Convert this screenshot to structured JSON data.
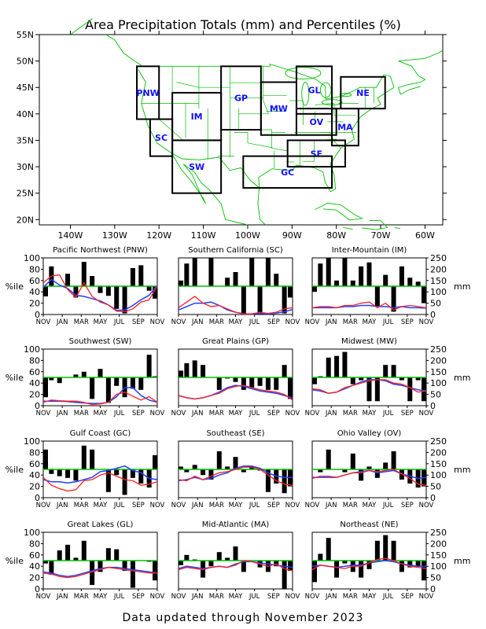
{
  "header": {
    "title": "Area Precipitation Totals (mm) and Percentiles (%)"
  },
  "footer": {
    "text": "Data updated through November 2023"
  },
  "map": {
    "lat_ticks": [
      "55N",
      "50N",
      "45N",
      "40N",
      "35N",
      "30N",
      "25N",
      "20N"
    ],
    "lon_ticks": [
      "140W",
      "130W",
      "120W",
      "110W",
      "100W",
      "90W",
      "80W",
      "70W",
      "60W"
    ],
    "regions": [
      {
        "code": "PNW",
        "lon": [
          -125,
          -120
        ],
        "lat": [
          39,
          49
        ]
      },
      {
        "code": "SC",
        "lon": [
          -122,
          -117
        ],
        "lat": [
          32,
          39
        ]
      },
      {
        "code": "IM",
        "lon": [
          -117,
          -106
        ],
        "lat": [
          35,
          44
        ]
      },
      {
        "code": "SW",
        "lon": [
          -117,
          -106
        ],
        "lat": [
          25,
          35
        ]
      },
      {
        "code": "GP",
        "lon": [
          -106,
          -97
        ],
        "lat": [
          37,
          49
        ]
      },
      {
        "code": "MW",
        "lon": [
          -97,
          -89
        ],
        "lat": [
          36,
          46
        ]
      },
      {
        "code": "GL",
        "lon": [
          -89,
          -81
        ],
        "lat": [
          40,
          49
        ]
      },
      {
        "code": "OV",
        "lon": [
          -89,
          -80
        ],
        "lat": [
          36,
          41
        ]
      },
      {
        "code": "NE",
        "lon": [
          -79,
          -69
        ],
        "lat": [
          41,
          47
        ]
      },
      {
        "code": "MA",
        "lon": [
          -81,
          -75
        ],
        "lat": [
          34,
          41
        ]
      },
      {
        "code": "SE",
        "lon": [
          -91,
          -78
        ],
        "lat": [
          30,
          35
        ]
      },
      {
        "code": "GC",
        "lon": [
          -101,
          -81
        ],
        "lat": [
          26,
          32
        ]
      }
    ],
    "colors": {
      "border": "#000000",
      "land": "#00c000",
      "label": "#1010ff"
    }
  },
  "axes": {
    "left_label": "%ile",
    "right_label": "mm",
    "pct_ticks": [
      "0",
      "20",
      "40",
      "60",
      "80",
      "100"
    ],
    "mm_ticks": [
      "0",
      "50",
      "100",
      "150",
      "200",
      "250"
    ],
    "months": [
      "NOV",
      "JAN",
      "MAR",
      "MAY",
      "JUL",
      "SEP",
      "NOV"
    ]
  },
  "chart_data": [
    {
      "type": "bar+line",
      "title": "Pacific Northwest (PNW)",
      "pct": [
        32,
        85,
        50,
        72,
        30,
        93,
        68,
        38,
        33,
        10,
        2,
        82,
        87,
        42,
        28
      ],
      "total_mm": [
        140,
        170,
        175,
        110,
        75,
        140,
        80,
        55,
        42,
        15,
        12,
        25,
        55,
        65,
        125
      ],
      "normal_mm": [
        120,
        155,
        130,
        115,
        85,
        80,
        70,
        60,
        42,
        18,
        20,
        40,
        65,
        85,
        128
      ]
    },
    {
      "type": "bar+line",
      "title": "Southern California (SC)",
      "pct": [
        60,
        90,
        100,
        50,
        100,
        50,
        65,
        75,
        2,
        100,
        2,
        100,
        72,
        2,
        30
      ],
      "total_mm": [
        30,
        55,
        80,
        50,
        35,
        40,
        25,
        10,
        2,
        3,
        10,
        5,
        10,
        25,
        30
      ],
      "normal_mm": [
        20,
        35,
        50,
        50,
        55,
        40,
        20,
        10,
        3,
        2,
        4,
        3,
        6,
        12,
        22
      ]
    },
    {
      "type": "bar+line",
      "title": "Inter-Mountain (IM)",
      "pct": [
        40,
        90,
        100,
        60,
        100,
        60,
        85,
        92,
        15,
        70,
        5,
        85,
        65,
        58,
        20
      ],
      "total_mm": [
        30,
        35,
        35,
        30,
        40,
        40,
        50,
        55,
        30,
        50,
        20,
        35,
        40,
        35,
        30
      ],
      "normal_mm": [
        30,
        30,
        30,
        30,
        35,
        35,
        40,
        40,
        35,
        35,
        30,
        35,
        30,
        30,
        28
      ]
    },
    {
      "type": "bar+line",
      "title": "Southwest (SW)",
      "pct": [
        15,
        45,
        40,
        50,
        55,
        60,
        12,
        65,
        5,
        35,
        15,
        30,
        28,
        90,
        52
      ],
      "total_mm": [
        15,
        25,
        22,
        20,
        20,
        15,
        5,
        8,
        15,
        50,
        60,
        42,
        25,
        40,
        15
      ],
      "normal_mm": [
        20,
        20,
        20,
        18,
        15,
        12,
        10,
        10,
        15,
        40,
        80,
        80,
        45,
        25,
        15
      ]
    },
    {
      "type": "bar+line",
      "title": "Great Plains (GP)",
      "pct": [
        62,
        75,
        80,
        72,
        50,
        28,
        48,
        42,
        28,
        32,
        35,
        28,
        28,
        72,
        12
      ],
      "total_mm": [
        45,
        35,
        30,
        35,
        45,
        55,
        75,
        85,
        90,
        80,
        70,
        65,
        60,
        50,
        25
      ],
      "normal_mm": [
        45,
        35,
        30,
        35,
        45,
        60,
        80,
        90,
        85,
        75,
        65,
        60,
        55,
        45,
        35
      ]
    },
    {
      "type": "bar+line",
      "title": "Midwest (MW)",
      "pct": [
        38,
        52,
        85,
        88,
        95,
        38,
        45,
        8,
        8,
        72,
        72,
        45,
        8,
        45,
        8
      ],
      "total_mm": [
        75,
        70,
        55,
        60,
        80,
        90,
        100,
        110,
        115,
        115,
        100,
        95,
        80,
        60,
        65
      ],
      "normal_mm": [
        70,
        65,
        55,
        60,
        75,
        90,
        105,
        115,
        115,
        110,
        95,
        90,
        80,
        70,
        65
      ]
    },
    {
      "type": "bar+line",
      "title": "Gulf Coast (GC)",
      "pct": [
        85,
        42,
        38,
        35,
        30,
        92,
        85,
        50,
        10,
        40,
        5,
        35,
        25,
        18,
        75
      ],
      "total_mm": [
        90,
        55,
        40,
        30,
        35,
        75,
        80,
        100,
        110,
        95,
        80,
        75,
        55,
        60,
        70
      ],
      "normal_mm": [
        80,
        70,
        70,
        65,
        70,
        80,
        90,
        115,
        120,
        130,
        140,
        120,
        110,
        85,
        80
      ]
    },
    {
      "type": "bar+line",
      "title": "Southeast (SE)",
      "pct": [
        55,
        45,
        58,
        40,
        32,
        82,
        55,
        72,
        45,
        55,
        48,
        10,
        25,
        8,
        20
      ],
      "total_mm": [
        80,
        75,
        95,
        80,
        95,
        110,
        115,
        125,
        135,
        135,
        125,
        100,
        75,
        60,
        55
      ],
      "normal_mm": [
        75,
        80,
        90,
        80,
        85,
        100,
        110,
        130,
        140,
        140,
        130,
        110,
        95,
        90,
        90
      ]
    },
    {
      "type": "bar+line",
      "title": "Ohio Valley (OV)",
      "pct": [
        50,
        45,
        85,
        50,
        45,
        78,
        30,
        55,
        35,
        62,
        82,
        32,
        25,
        18,
        20
      ],
      "total_mm": [
        85,
        95,
        95,
        90,
        100,
        110,
        110,
        120,
        115,
        120,
        125,
        105,
        85,
        60,
        55
      ],
      "normal_mm": [
        90,
        90,
        90,
        90,
        100,
        110,
        115,
        120,
        110,
        115,
        120,
        105,
        95,
        85,
        90
      ]
    },
    {
      "type": "bar+line",
      "title": "Great Lakes (GL)",
      "pct": [
        45,
        25,
        68,
        78,
        55,
        85,
        7,
        30,
        72,
        70,
        32,
        2,
        50,
        48,
        15
      ],
      "total_mm": [
        70,
        65,
        55,
        50,
        55,
        65,
        75,
        85,
        95,
        90,
        85,
        80,
        75,
        70,
        70
      ],
      "normal_mm": [
        75,
        70,
        60,
        55,
        60,
        70,
        80,
        90,
        95,
        95,
        90,
        85,
        80,
        75,
        70
      ]
    },
    {
      "type": "bar+line",
      "title": "Mid-Atlantic (MA)",
      "pct": [
        42,
        60,
        52,
        20,
        40,
        65,
        55,
        75,
        30,
        50,
        38,
        30,
        40,
        0,
        32
      ],
      "total_mm": [
        85,
        95,
        90,
        85,
        95,
        100,
        95,
        105,
        125,
        120,
        110,
        100,
        110,
        90,
        80
      ],
      "normal_mm": [
        90,
        100,
        95,
        90,
        95,
        100,
        95,
        110,
        120,
        120,
        115,
        110,
        105,
        100,
        95
      ]
    },
    {
      "type": "bar+line",
      "title": "Northeast (NE)",
      "pct": [
        12,
        62,
        90,
        20,
        45,
        30,
        20,
        35,
        85,
        95,
        85,
        30,
        38,
        40,
        15
      ],
      "total_mm": [
        85,
        105,
        100,
        95,
        90,
        100,
        100,
        115,
        130,
        135,
        125,
        110,
        100,
        95,
        90
      ],
      "normal_mm": [
        100,
        105,
        100,
        95,
        100,
        105,
        105,
        115,
        120,
        125,
        120,
        110,
        105,
        100,
        100
      ]
    }
  ],
  "series_colors": {
    "bars": "#000000",
    "total": "#ff2020",
    "normal": "#2040ff",
    "median": "#00c000"
  }
}
